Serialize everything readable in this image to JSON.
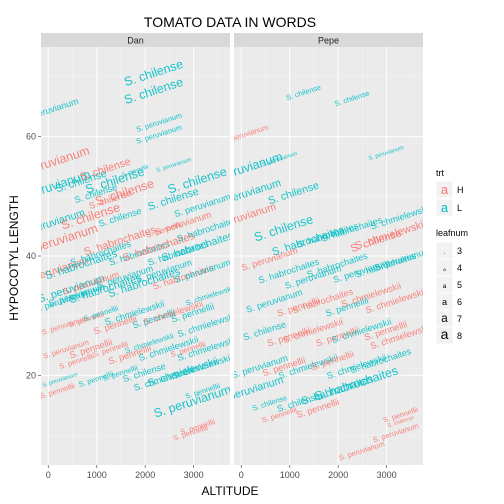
{
  "colors": {
    "H": "#F8766D",
    "L": "#00BFC4",
    "panel_bg": "#EBEBEB",
    "strip_bg": "#D9D9D9",
    "grid": "#FFFFFF"
  },
  "chart_data": {
    "type": "scatter",
    "title": "TOMATO DATA IN WORDS",
    "xlabel": "ALTITUDE",
    "ylabel": "HYPOCOTYL LENGTH",
    "xlim": [
      -150,
      3750
    ],
    "ylim": [
      5,
      75
    ],
    "xticks": [
      0,
      1000,
      2000,
      3000
    ],
    "yticks": [
      20,
      40,
      60
    ],
    "facets": [
      "Dan",
      "Pepe"
    ],
    "mark": "species name printed as text at each point, rotated, size by leafnum",
    "legend": {
      "trt": {
        "title": "trt",
        "entries": [
          {
            "label": "H",
            "color": "#F8766D"
          },
          {
            "label": "L",
            "color": "#00BFC4"
          }
        ]
      },
      "leafnum": {
        "title": "leafnum",
        "entries": [
          "3",
          "4",
          "5",
          "6",
          "7",
          "8"
        ]
      },
      "glyph": "a",
      "placement": "right"
    },
    "points": {
      "Dan": [
        {
          "x": 80,
          "y": 55,
          "label": "S. peruvianum",
          "trt": "H",
          "leaf": 8
        },
        {
          "x": 100,
          "y": 51,
          "label": "S. peruvianum",
          "trt": "L",
          "leaf": 8
        },
        {
          "x": 60,
          "y": 64,
          "label": "S. peruvianum",
          "trt": "L",
          "leaf": 6
        },
        {
          "x": 90,
          "y": 45,
          "label": "S. peruvianum",
          "trt": "L",
          "leaf": 7
        },
        {
          "x": 150,
          "y": 37,
          "label": "S. peruvianum",
          "trt": "H",
          "leaf": 7
        },
        {
          "x": 250,
          "y": 42,
          "label": "S. peruvianum",
          "trt": "H",
          "leaf": 8
        },
        {
          "x": 300,
          "y": 32,
          "label": "S. peruvianum",
          "trt": "L",
          "leaf": 6
        },
        {
          "x": 350,
          "y": 28,
          "label": "S. peruvianum",
          "trt": "H",
          "leaf": 5
        },
        {
          "x": 380,
          "y": 24,
          "label": "S. peruvianum",
          "trt": "H",
          "leaf": 5
        },
        {
          "x": 250,
          "y": 19,
          "label": "S. peruvianum",
          "trt": "L",
          "leaf": 4
        },
        {
          "x": 200,
          "y": 17,
          "label": "S. pennellii",
          "trt": "H",
          "leaf": 5
        },
        {
          "x": 500,
          "y": 34,
          "label": "S. peruvianum",
          "trt": "L",
          "leaf": 7
        },
        {
          "x": 700,
          "y": 52,
          "label": "S. chilense",
          "trt": "L",
          "leaf": 7
        },
        {
          "x": 900,
          "y": 46,
          "label": "S. chilense",
          "trt": "H",
          "leaf": 8
        },
        {
          "x": 1000,
          "y": 50,
          "label": "S. chilense",
          "trt": "L",
          "leaf": 6
        },
        {
          "x": 1200,
          "y": 54,
          "label": "S. chilense",
          "trt": "H",
          "leaf": 7
        },
        {
          "x": 1400,
          "y": 52,
          "label": "S. chilense",
          "trt": "L",
          "leaf": 8
        },
        {
          "x": 1300,
          "y": 49,
          "label": "S. chilense",
          "trt": "H",
          "leaf": 6
        },
        {
          "x": 1600,
          "y": 50,
          "label": "S. chilense",
          "trt": "H",
          "leaf": 8
        },
        {
          "x": 1500,
          "y": 46,
          "label": "S. chilense",
          "trt": "L",
          "leaf": 6
        },
        {
          "x": 1800,
          "y": 54,
          "label": "S. pennellii",
          "trt": "L",
          "leaf": 4
        },
        {
          "x": 2200,
          "y": 70,
          "label": "S. chilense",
          "trt": "L",
          "leaf": 8
        },
        {
          "x": 2200,
          "y": 67,
          "label": "S. chilense",
          "trt": "L",
          "leaf": 8
        },
        {
          "x": 2300,
          "y": 62,
          "label": "S. peruvianum",
          "trt": "L",
          "leaf": 5
        },
        {
          "x": 2300,
          "y": 60,
          "label": "S. peruvianum",
          "trt": "L",
          "leaf": 5
        },
        {
          "x": 2600,
          "y": 55,
          "label": "S. peruvianum",
          "trt": "L",
          "leaf": 4
        },
        {
          "x": 2600,
          "y": 49,
          "label": "S. chilense",
          "trt": "L",
          "leaf": 7
        },
        {
          "x": 3100,
          "y": 52,
          "label": "S. chilense",
          "trt": "L",
          "leaf": 8
        },
        {
          "x": 3200,
          "y": 48,
          "label": "S. peruvianum",
          "trt": "L",
          "leaf": 6
        },
        {
          "x": 2400,
          "y": 44,
          "label": "S. pennellii",
          "trt": "H",
          "leaf": 5
        },
        {
          "x": 2800,
          "y": 45,
          "label": "S. peruvianum",
          "trt": "H",
          "leaf": 6
        },
        {
          "x": 700,
          "y": 38,
          "label": "S. habrochaites",
          "trt": "L",
          "leaf": 7
        },
        {
          "x": 1100,
          "y": 40,
          "label": "S. habrochaites",
          "trt": "L",
          "leaf": 6
        },
        {
          "x": 1500,
          "y": 42,
          "label": "S. habrochaites",
          "trt": "H",
          "leaf": 7
        },
        {
          "x": 1900,
          "y": 40,
          "label": "S. habrochaites",
          "trt": "L",
          "leaf": 6
        },
        {
          "x": 2300,
          "y": 41,
          "label": "S. habrochaites",
          "trt": "H",
          "leaf": 7
        },
        {
          "x": 2700,
          "y": 40,
          "label": "S. habrochaites",
          "trt": "L",
          "leaf": 6
        },
        {
          "x": 3100,
          "y": 41,
          "label": "S. habrochaites",
          "trt": "L",
          "leaf": 7
        },
        {
          "x": 3300,
          "y": 44,
          "label": "S. habrochaites",
          "trt": "L",
          "leaf": 6
        },
        {
          "x": 600,
          "y": 33,
          "label": "S. peruvianum",
          "trt": "L",
          "leaf": 6
        },
        {
          "x": 900,
          "y": 35,
          "label": "S. peruvianum",
          "trt": "H",
          "leaf": 6
        },
        {
          "x": 1200,
          "y": 34,
          "label": "S. habrochaites",
          "trt": "L",
          "leaf": 7
        },
        {
          "x": 1600,
          "y": 36,
          "label": "S. peruvianum",
          "trt": "L",
          "leaf": 6
        },
        {
          "x": 2000,
          "y": 35,
          "label": "S. habrochaites",
          "trt": "L",
          "leaf": 7
        },
        {
          "x": 2400,
          "y": 37,
          "label": "S. peruvianum",
          "trt": "L",
          "leaf": 6
        },
        {
          "x": 2800,
          "y": 36,
          "label": "S. habrochaites",
          "trt": "H",
          "leaf": 6
        },
        {
          "x": 3200,
          "y": 37,
          "label": "S. peruvianum",
          "trt": "L",
          "leaf": 6
        },
        {
          "x": 3350,
          "y": 33,
          "label": "S. chmielewskii",
          "trt": "L",
          "leaf": 5
        },
        {
          "x": 800,
          "y": 29,
          "label": "S. pennellii",
          "trt": "H",
          "leaf": 5
        },
        {
          "x": 1100,
          "y": 30,
          "label": "S. pennellii",
          "trt": "L",
          "leaf": 5
        },
        {
          "x": 1400,
          "y": 28,
          "label": "S. pennellii",
          "trt": "H",
          "leaf": 6
        },
        {
          "x": 1800,
          "y": 30,
          "label": "S. chmielewskii",
          "trt": "L",
          "leaf": 6
        },
        {
          "x": 2200,
          "y": 29,
          "label": "S. pennellii",
          "trt": "L",
          "leaf": 6
        },
        {
          "x": 2600,
          "y": 30,
          "label": "S. chmielewskii",
          "trt": "H",
          "leaf": 6
        },
        {
          "x": 3000,
          "y": 30,
          "label": "S. pennellii",
          "trt": "L",
          "leaf": 6
        },
        {
          "x": 3300,
          "y": 28,
          "label": "S. chmielewskii",
          "trt": "L",
          "leaf": 6
        },
        {
          "x": 900,
          "y": 24,
          "label": "S. pennellii",
          "trt": "H",
          "leaf": 6
        },
        {
          "x": 1300,
          "y": 24,
          "label": "S. pennellii",
          "trt": "H",
          "leaf": 5
        },
        {
          "x": 1700,
          "y": 23,
          "label": "S. pennellii",
          "trt": "H",
          "leaf": 6
        },
        {
          "x": 2100,
          "y": 25,
          "label": "S. chmielewskii",
          "trt": "L",
          "leaf": 5
        },
        {
          "x": 2500,
          "y": 24,
          "label": "S. chmielewskii",
          "trt": "L",
          "leaf": 6
        },
        {
          "x": 2900,
          "y": 24,
          "label": "S. pennellii",
          "trt": "H",
          "leaf": 5
        },
        {
          "x": 3300,
          "y": 24,
          "label": "S. chmielewskii",
          "trt": "L",
          "leaf": 6
        },
        {
          "x": 2000,
          "y": 20,
          "label": "S. chilense",
          "trt": "L",
          "leaf": 6
        },
        {
          "x": 2400,
          "y": 19,
          "label": "S. chmielewskii",
          "trt": "L",
          "leaf": 6
        },
        {
          "x": 2800,
          "y": 20,
          "label": "S. chmielewskii",
          "trt": "L",
          "leaf": 7
        },
        {
          "x": 3200,
          "y": 21,
          "label": "S. chmielewskii",
          "trt": "L",
          "leaf": 6
        },
        {
          "x": 3000,
          "y": 15,
          "label": "S. peruvianum",
          "trt": "L",
          "leaf": 8
        },
        {
          "x": 2950,
          "y": 10,
          "label": "S. pennellii",
          "trt": "H",
          "leaf": 5
        },
        {
          "x": 3100,
          "y": 11,
          "label": "S. pennellii",
          "trt": "H",
          "leaf": 5
        },
        {
          "x": 3200,
          "y": 17,
          "label": "S. pennellii",
          "trt": "L",
          "leaf": 5
        },
        {
          "x": 600,
          "y": 22,
          "label": "S. pennellii",
          "trt": "H",
          "leaf": 5
        },
        {
          "x": 1000,
          "y": 19,
          "label": "S. pennellii",
          "trt": "L",
          "leaf": 5
        },
        {
          "x": 1500,
          "y": 20,
          "label": "S. pennellii",
          "trt": "L",
          "leaf": 5
        }
      ],
      "Pepe": [
        {
          "x": 1300,
          "y": 67,
          "label": "S. chilense",
          "trt": "L",
          "leaf": 5
        },
        {
          "x": 2300,
          "y": 66,
          "label": "S. chilense",
          "trt": "L",
          "leaf": 5
        },
        {
          "x": 100,
          "y": 60,
          "label": "S. peruvianum",
          "trt": "H",
          "leaf": 5
        },
        {
          "x": 80,
          "y": 54,
          "label": "S. peruvianum",
          "trt": "L",
          "leaf": 8
        },
        {
          "x": 150,
          "y": 50,
          "label": "S. peruvianum",
          "trt": "L",
          "leaf": 7
        },
        {
          "x": 50,
          "y": 46,
          "label": "S. peruvianum",
          "trt": "H",
          "leaf": 7
        },
        {
          "x": 800,
          "y": 56,
          "label": "S. peruvianum",
          "trt": "L",
          "leaf": 4
        },
        {
          "x": 1100,
          "y": 50,
          "label": "S. chilense",
          "trt": "L",
          "leaf": 7
        },
        {
          "x": 900,
          "y": 44,
          "label": "S. chilense",
          "trt": "L",
          "leaf": 8
        },
        {
          "x": 3000,
          "y": 57,
          "label": "S. peruvianum",
          "trt": "L",
          "leaf": 4
        },
        {
          "x": 600,
          "y": 39,
          "label": "S. peruvianum",
          "trt": "H",
          "leaf": 6
        },
        {
          "x": 1400,
          "y": 42,
          "label": "S. habrochaites",
          "trt": "L",
          "leaf": 7
        },
        {
          "x": 1800,
          "y": 43,
          "label": "S. habrochaites",
          "trt": "L",
          "leaf": 6
        },
        {
          "x": 2300,
          "y": 44,
          "label": "S. habrochaites",
          "trt": "L",
          "leaf": 6
        },
        {
          "x": 2800,
          "y": 42,
          "label": "S. chilense",
          "trt": "H",
          "leaf": 7
        },
        {
          "x": 3100,
          "y": 43,
          "label": "S. chmielewskii",
          "trt": "H",
          "leaf": 7
        },
        {
          "x": 3300,
          "y": 46,
          "label": "S. chmielewskii",
          "trt": "L",
          "leaf": 6
        },
        {
          "x": 1000,
          "y": 37,
          "label": "S. habrochaites",
          "trt": "L",
          "leaf": 6
        },
        {
          "x": 1500,
          "y": 36,
          "label": "S. peruvianum",
          "trt": "L",
          "leaf": 6
        },
        {
          "x": 2000,
          "y": 38,
          "label": "S. habrochaites",
          "trt": "L",
          "leaf": 6
        },
        {
          "x": 2500,
          "y": 37,
          "label": "S. peruvianum",
          "trt": "L",
          "leaf": 6
        },
        {
          "x": 3000,
          "y": 38,
          "label": "S. habrochaites",
          "trt": "L",
          "leaf": 6
        },
        {
          "x": 3350,
          "y": 39,
          "label": "S. peruvianum",
          "trt": "L",
          "leaf": 6
        },
        {
          "x": 700,
          "y": 32,
          "label": "S. peruvianum",
          "trt": "L",
          "leaf": 6
        },
        {
          "x": 1200,
          "y": 31,
          "label": "S. pennellii",
          "trt": "H",
          "leaf": 6
        },
        {
          "x": 1700,
          "y": 32,
          "label": "S. habrochaites",
          "trt": "H",
          "leaf": 6
        },
        {
          "x": 2200,
          "y": 31,
          "label": "S. pennellii",
          "trt": "L",
          "leaf": 6
        },
        {
          "x": 2700,
          "y": 33,
          "label": "S. chmielewskii",
          "trt": "H",
          "leaf": 6
        },
        {
          "x": 3200,
          "y": 32,
          "label": "S. chmielewskii",
          "trt": "H",
          "leaf": 6
        },
        {
          "x": 500,
          "y": 27,
          "label": "S. chilense",
          "trt": "L",
          "leaf": 6
        },
        {
          "x": 1000,
          "y": 26,
          "label": "S. pennellii",
          "trt": "H",
          "leaf": 6
        },
        {
          "x": 1500,
          "y": 27,
          "label": "S. chmielewskii",
          "trt": "H",
          "leaf": 6
        },
        {
          "x": 2000,
          "y": 26,
          "label": "S. pennellii",
          "trt": "H",
          "leaf": 6
        },
        {
          "x": 2500,
          "y": 27,
          "label": "S. chmielewskii",
          "trt": "L",
          "leaf": 6
        },
        {
          "x": 3000,
          "y": 27,
          "label": "S. pennellii",
          "trt": "H",
          "leaf": 6
        },
        {
          "x": 3300,
          "y": 26,
          "label": "S. chmielewskii",
          "trt": "H",
          "leaf": 6
        },
        {
          "x": 400,
          "y": 21,
          "label": "S. peruvianum",
          "trt": "L",
          "leaf": 6
        },
        {
          "x": 900,
          "y": 21,
          "label": "S. pennellii",
          "trt": "H",
          "leaf": 6
        },
        {
          "x": 1400,
          "y": 21,
          "label": "S. chmielewskii",
          "trt": "L",
          "leaf": 6
        },
        {
          "x": 1900,
          "y": 22,
          "label": "S. pennellii",
          "trt": "H",
          "leaf": 6
        },
        {
          "x": 2400,
          "y": 21,
          "label": "S. chmielewskii",
          "trt": "L",
          "leaf": 6
        },
        {
          "x": 2900,
          "y": 22,
          "label": "S. habrochaites",
          "trt": "L",
          "leaf": 6
        },
        {
          "x": 2400,
          "y": 18,
          "label": "S. habrochaites",
          "trt": "L",
          "leaf": 8
        },
        {
          "x": 2000,
          "y": 17,
          "label": "S. habrochaites",
          "trt": "L",
          "leaf": 7
        },
        {
          "x": 200,
          "y": 17,
          "label": "S. peruvianum",
          "trt": "L",
          "leaf": 7
        },
        {
          "x": 600,
          "y": 15,
          "label": "S. chilense",
          "trt": "L",
          "leaf": 5
        },
        {
          "x": 800,
          "y": 13,
          "label": "S. pennellii",
          "trt": "H",
          "leaf": 5
        },
        {
          "x": 1200,
          "y": 15,
          "label": "S. chilense",
          "trt": "L",
          "leaf": 6
        },
        {
          "x": 1600,
          "y": 14,
          "label": "S. pennellii",
          "trt": "H",
          "leaf": 6
        },
        {
          "x": 2500,
          "y": 7,
          "label": "S. peruvianum",
          "trt": "H",
          "leaf": 5
        },
        {
          "x": 3200,
          "y": 10,
          "label": "S. peruvianum",
          "trt": "H",
          "leaf": 5
        },
        {
          "x": 3300,
          "y": 13,
          "label": "S. pennellii",
          "trt": "H",
          "leaf": 5
        },
        {
          "x": 3300,
          "y": 12,
          "label": "S. chilense",
          "trt": "H",
          "leaf": 4
        }
      ]
    }
  }
}
